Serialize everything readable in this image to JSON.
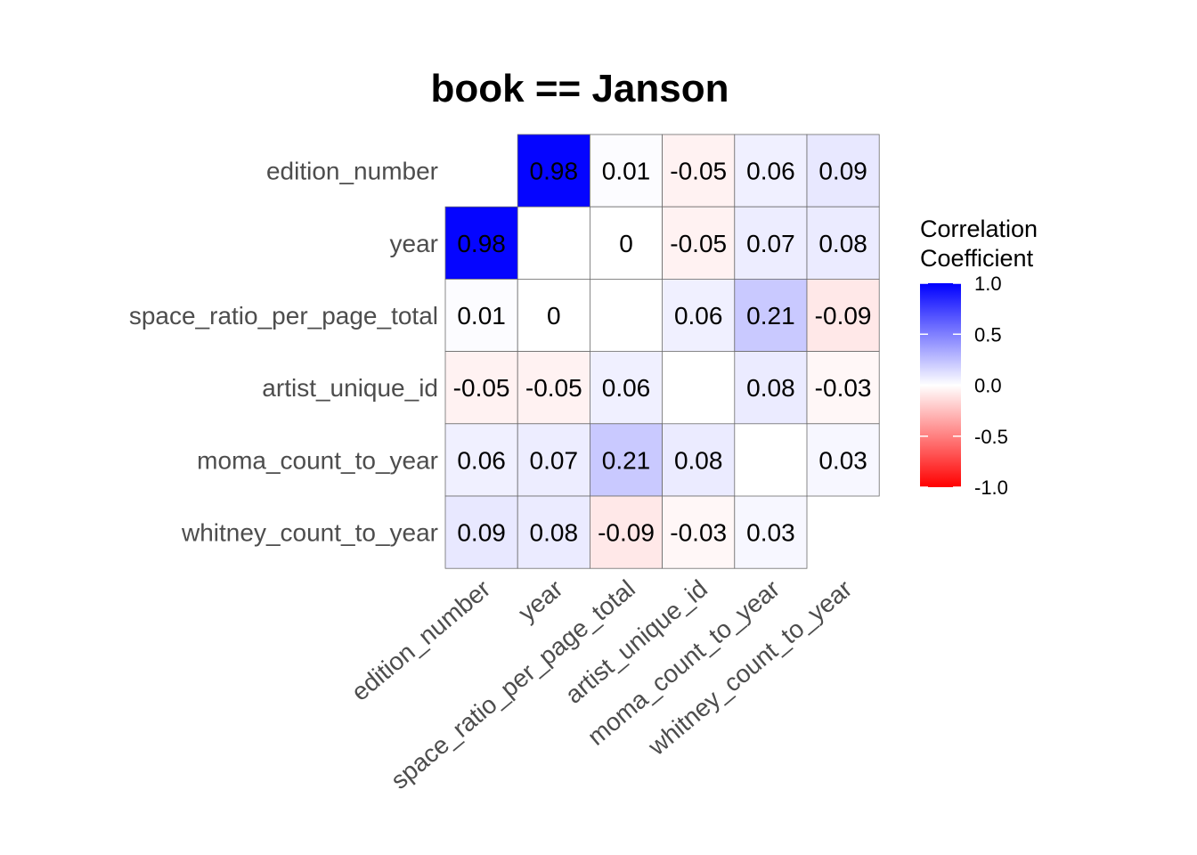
{
  "chart_data": {
    "type": "heatmap",
    "title": "book == Janson",
    "variables": [
      "edition_number",
      "year",
      "space_ratio_per_page_total",
      "artist_unique_id",
      "moma_count_to_year",
      "whitney_count_to_year"
    ],
    "matrix": [
      [
        null,
        0.98,
        0.01,
        -0.05,
        0.06,
        0.09
      ],
      [
        0.98,
        null,
        0,
        -0.05,
        0.07,
        0.08
      ],
      [
        0.01,
        0,
        null,
        0.06,
        0.21,
        -0.09
      ],
      [
        -0.05,
        -0.05,
        0.06,
        null,
        0.08,
        -0.03
      ],
      [
        0.06,
        0.07,
        0.21,
        0.08,
        null,
        0.03
      ],
      [
        0.09,
        0.08,
        -0.09,
        -0.03,
        0.03,
        null
      ]
    ],
    "legend": {
      "title_lines": [
        "Correlation",
        "Coefficient"
      ],
      "range": [
        -1,
        1
      ],
      "ticks": [
        "1.0",
        "0.5",
        "0.0",
        "-0.5",
        "-1.0"
      ],
      "tick_values": [
        1,
        0.5,
        0,
        -0.5,
        -1
      ],
      "placement": "right"
    },
    "colors": {
      "high": "#0000ff",
      "mid": "#ffffff",
      "low": "#ff0000"
    }
  }
}
